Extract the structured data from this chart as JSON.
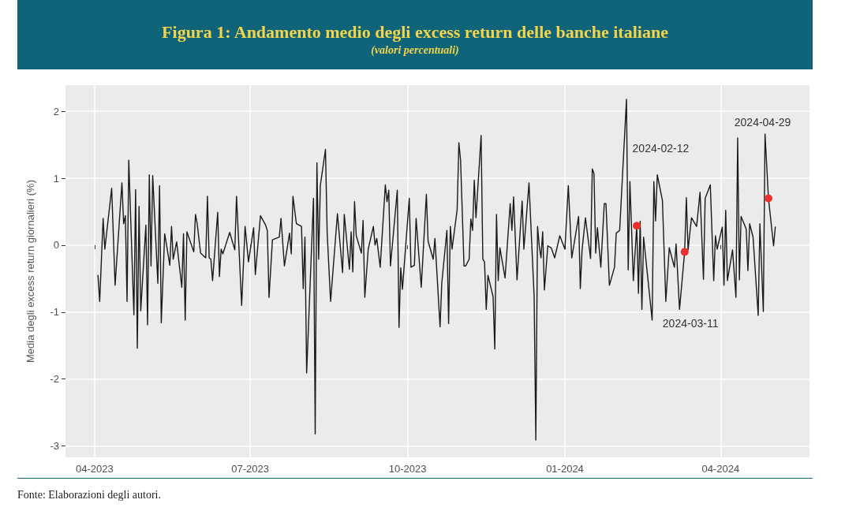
{
  "chart_data": {
    "type": "line",
    "title": "Figura 1: Andamento medio degli excess return delle banche italiane",
    "subtitle": "(valori percentuali)",
    "ylabel": "Media degli excess return giornalieri (%)",
    "x": [
      "2023-04-03",
      "2023-04-04",
      "2023-04-06",
      "2023-04-07",
      "2023-04-11",
      "2023-04-13",
      "2023-04-17",
      "2023-04-18",
      "2023-04-19",
      "2023-04-20",
      "2023-04-21",
      "2023-04-24",
      "2023-04-25",
      "2023-04-26",
      "2023-04-27",
      "2023-04-28",
      "2023-05-01",
      "2023-05-02",
      "2023-05-03",
      "2023-05-04",
      "2023-05-05",
      "2023-05-08",
      "2023-05-09",
      "2023-05-10",
      "2023-05-12",
      "2023-05-15",
      "2023-05-16",
      "2023-05-17",
      "2023-05-19",
      "2023-05-22",
      "2023-05-23",
      "2023-05-24",
      "2023-05-25",
      "2023-05-29",
      "2023-05-30",
      "2023-05-31",
      "2023-06-02",
      "2023-06-05",
      "2023-06-06",
      "2023-06-07",
      "2023-06-08",
      "2023-06-09",
      "2023-06-12",
      "2023-06-13",
      "2023-06-14",
      "2023-06-15",
      "2023-06-19",
      "2023-06-22",
      "2023-06-23",
      "2023-06-26",
      "2023-06-28",
      "2023-06-30",
      "2023-07-03",
      "2023-07-04",
      "2023-07-07",
      "2023-07-10",
      "2023-07-11",
      "2023-07-12",
      "2023-07-14",
      "2023-07-18",
      "2023-07-19",
      "2023-07-21",
      "2023-07-24",
      "2023-07-25",
      "2023-07-26",
      "2023-07-28",
      "2023-07-31",
      "2023-08-01",
      "2023-08-02",
      "2023-08-03",
      "2023-08-07",
      "2023-08-08",
      "2023-08-09",
      "2023-08-10",
      "2023-08-11",
      "2023-08-14",
      "2023-08-15",
      "2023-08-17",
      "2023-08-21",
      "2023-08-24",
      "2023-08-25",
      "2023-08-28",
      "2023-08-29",
      "2023-08-30",
      "2023-08-31",
      "2023-09-01",
      "2023-09-04",
      "2023-09-05",
      "2023-09-06",
      "2023-09-08",
      "2023-09-11",
      "2023-09-12",
      "2023-09-13",
      "2023-09-15",
      "2023-09-18",
      "2023-09-19",
      "2023-09-20",
      "2023-09-21",
      "2023-09-25",
      "2023-09-26",
      "2023-09-27",
      "2023-09-28",
      "2023-10-02",
      "2023-10-03",
      "2023-10-05",
      "2023-10-06",
      "2023-10-09",
      "2023-10-12",
      "2023-10-13",
      "2023-10-16",
      "2023-10-17",
      "2023-10-20",
      "2023-10-21",
      "2023-10-24",
      "2023-10-25",
      "2023-10-26",
      "2023-10-27",
      "2023-10-30",
      "2023-10-31",
      "2023-11-01",
      "2023-11-03",
      "2023-11-04",
      "2023-11-06",
      "2023-11-07",
      "2023-11-08",
      "2023-11-09",
      "2023-11-10",
      "2023-11-13",
      "2023-11-14",
      "2023-11-15",
      "2023-11-16",
      "2023-11-17",
      "2023-11-20",
      "2023-11-21",
      "2023-11-22",
      "2023-11-23",
      "2023-11-24",
      "2023-11-27",
      "2023-11-30",
      "2023-12-01",
      "2023-12-02",
      "2023-12-04",
      "2023-12-07",
      "2023-12-08",
      "2023-12-11",
      "2023-12-14",
      "2023-12-15",
      "2023-12-16",
      "2023-12-17",
      "2023-12-18",
      "2023-12-19",
      "2023-12-20",
      "2023-12-22",
      "2023-12-24",
      "2023-12-26",
      "2023-12-29",
      "2024-01-01",
      "2024-01-03",
      "2024-01-05",
      "2024-01-09",
      "2024-01-10",
      "2024-01-11",
      "2024-01-13",
      "2024-01-16",
      "2024-01-17",
      "2024-01-18",
      "2024-01-19",
      "2024-01-20",
      "2024-01-22",
      "2024-01-24",
      "2024-01-25",
      "2024-01-27",
      "2024-01-30",
      "2024-01-31",
      "2024-02-02",
      "2024-02-06",
      "2024-02-07",
      "2024-02-08",
      "2024-02-10",
      "2024-02-12",
      "2024-02-13",
      "2024-02-14",
      "2024-02-15",
      "2024-02-16",
      "2024-02-21",
      "2024-02-22",
      "2024-02-23",
      "2024-02-24",
      "2024-02-27",
      "2024-02-29",
      "2024-03-02",
      "2024-03-05",
      "2024-03-06",
      "2024-03-08",
      "2024-03-11",
      "2024-03-12",
      "2024-03-13",
      "2024-03-15",
      "2024-03-18",
      "2024-03-20",
      "2024-03-22",
      "2024-03-23",
      "2024-03-26",
      "2024-03-28",
      "2024-03-29",
      "2024-03-30",
      "2024-04-02",
      "2024-04-03",
      "2024-04-04",
      "2024-04-05",
      "2024-04-08",
      "2024-04-10",
      "2024-04-11",
      "2024-04-12",
      "2024-04-13",
      "2024-04-16",
      "2024-04-17",
      "2024-04-18",
      "2024-04-20",
      "2024-04-23",
      "2024-04-24",
      "2024-04-26",
      "2024-04-27",
      "2024-04-29",
      "2024-05-02",
      "2024-05-03"
    ],
    "series": [
      {
        "color": "#1a1a1a",
        "values": [
          -0.45,
          -0.84,
          0.4,
          -0.06,
          0.85,
          -0.6,
          0.93,
          0.32,
          0.44,
          -0.84,
          1.27,
          -1.04,
          0.83,
          -1.54,
          0.58,
          -0.98,
          0.3,
          -1.19,
          1.05,
          -0.31,
          1.04,
          -0.57,
          0.89,
          -1.16,
          0.17,
          -0.3,
          0.28,
          -0.21,
          0.05,
          -0.63,
          0.17,
          -1.12,
          0.2,
          -0.1,
          0.46,
          0.32,
          -0.12,
          -0.19,
          0.73,
          -0.19,
          -0.21,
          -0.53,
          0.49,
          -0.47,
          -0.06,
          -0.13,
          0.19,
          -0.07,
          0.73,
          -0.9,
          0.28,
          -0.25,
          0.26,
          -0.44,
          0.44,
          0.3,
          0.22,
          -0.78,
          0.08,
          0.12,
          0.4,
          -0.31,
          0.18,
          -0.13,
          0.73,
          0.32,
          0.28,
          -0.65,
          0.12,
          -1.91,
          0.7,
          -2.82,
          1.23,
          -0.21,
          0.89,
          1.43,
          0.18,
          -0.84,
          0.47,
          -0.41,
          0.46,
          -0.36,
          0.2,
          -0.4,
          0.65,
          0.14,
          -0.12,
          0.37,
          -0.78,
          -0.06,
          0.28,
          0,
          0.1,
          -0.33,
          0.9,
          0.65,
          0.82,
          -0.31,
          0.82,
          -1.23,
          -0.34,
          -0.66,
          0.7,
          -0.33,
          -0.3,
          0.4,
          -0.63,
          0.76,
          0.06,
          -0.21,
          0.1,
          -1.22,
          -0.57,
          0.22,
          -1.17,
          0.28,
          -0.06,
          0.53,
          1.53,
          1.27,
          -0.31,
          -0.31,
          -0.21,
          0.39,
          0.22,
          0.97,
          0.41,
          1.64,
          -0.21,
          -0.25,
          -0.96,
          -0.45,
          -0.77,
          -1.55,
          0.46,
          -0.53,
          -0.04,
          -0.49,
          0.62,
          0.22,
          0.72,
          -0.52,
          0.66,
          -0.06,
          0.93,
          -0.77,
          -2.91,
          0.28,
          -0.01,
          -0.19,
          0.2,
          -0.67,
          -0.01,
          -0.04,
          -0.19,
          0.14,
          -0.06,
          0.89,
          -0.19,
          0.43,
          -0.65,
          -0.08,
          0.41,
          -0.2,
          1.14,
          1.07,
          -0.12,
          0.26,
          -0.33,
          0.62,
          0.62,
          -0.6,
          -0.33,
          0.18,
          0.22,
          2.18,
          -0.37,
          0.95,
          -0.53,
          0.29,
          -0.72,
          0.36,
          -0.96,
          0.12,
          -1.12,
          0.95,
          0.36,
          1.05,
          0.67,
          -0.84,
          -0.04,
          -0.33,
          0.02,
          -0.96,
          -0.1,
          0.71,
          -0.07,
          0.41,
          0.28,
          0.79,
          -0.51,
          0.7,
          0.9,
          -0.53,
          0.14,
          -0.06,
          0.27,
          -0.6,
          0.52,
          -0.53,
          -0.07,
          -0.78,
          1.6,
          -0.52,
          0.43,
          0.24,
          -0.38,
          0.32,
          0.12,
          -1.05,
          0.32,
          -0.99,
          1.66,
          0.7,
          -0.01,
          0.27
        ]
      },
      {
        "type": "scatter",
        "color": "#e8312f",
        "x": [
          "2024-02-12",
          "2024-03-11",
          "2024-04-29"
        ],
        "values": [
          0.29,
          -0.1,
          0.7
        ]
      }
    ],
    "annotations": [
      "2024-02-12",
      "2024-03-11",
      "2024-04-29",
      "Fonte: Elaborazioni degli autori."
    ],
    "xlim": [
      "2023-03-15",
      "2024-05-23"
    ],
    "xticks": [
      {
        "value": "2023-04-01",
        "label": "04-2023"
      },
      {
        "value": "2023-07-01",
        "label": "07-2023"
      },
      {
        "value": "2023-10-01",
        "label": "10-2023"
      },
      {
        "value": "2024-01-01",
        "label": "01-2024"
      },
      {
        "value": "2024-04-01",
        "label": "04-2024"
      }
    ],
    "ylim": [
      -3.17,
      2.39
    ],
    "yticks": [
      -3,
      -2,
      -1,
      0,
      1,
      2
    ],
    "grid": true
  }
}
